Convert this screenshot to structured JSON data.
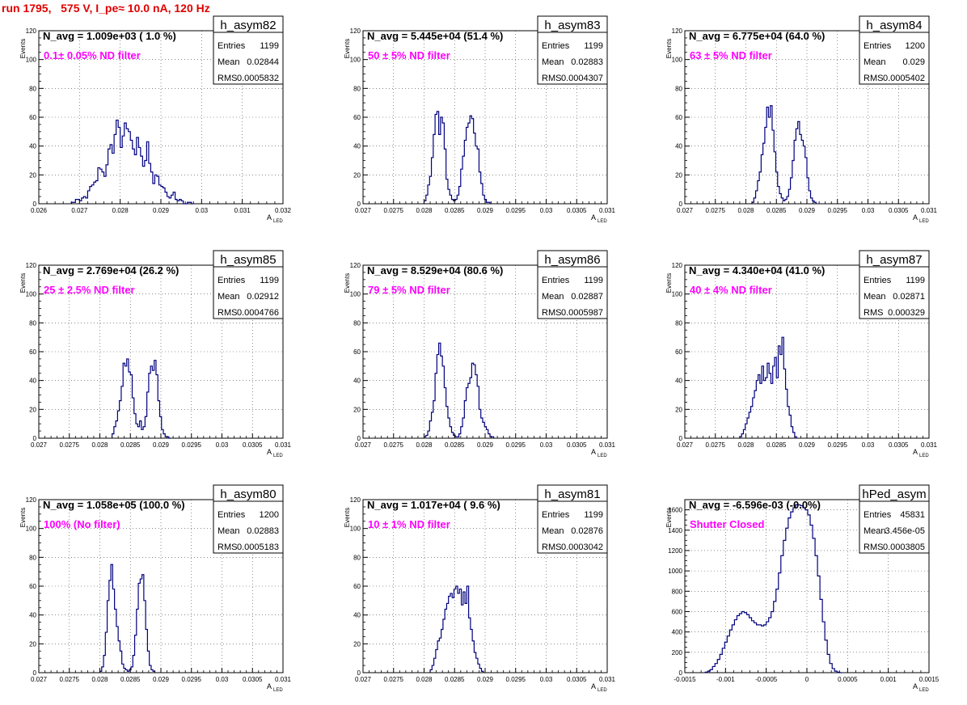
{
  "header": {
    "title": "run 1795,   575 V, I_pe≈ 10.0 nA, 120 Hz"
  },
  "stats_labels": {
    "entries": "Entries",
    "mean": "Mean",
    "rms": "RMS"
  },
  "axis_labels": {
    "ylabel": "Events",
    "xlabel_main": "A",
    "xlabel_sub": "LED"
  },
  "colors": {
    "histogram": "#00007f",
    "label": "#ff00ff",
    "title": "#e00000"
  },
  "chart_data": [
    {
      "type": "histogram",
      "name": "h_asym82",
      "navg_text": "N_avg = 1.009e+03 ( 1.0 %)",
      "label": "0.1± 0.05% ND filter",
      "stats": {
        "entries": "1199",
        "mean": "0.02844",
        "rms": "0.0005832"
      },
      "xlim": [
        0.026,
        0.032
      ],
      "ylim": [
        0,
        120
      ],
      "xticks": [
        "0.026",
        "0.027",
        "0.028",
        "0.029",
        "0.03",
        "0.031",
        "0.032"
      ],
      "yticks": [
        "0",
        "20",
        "40",
        "60",
        "80",
        "100",
        "120"
      ],
      "bin_start": 0.0268,
      "bin_width": 5e-05,
      "counts": [
        1,
        1,
        3,
        3,
        2,
        4,
        5,
        4,
        9,
        12,
        13,
        15,
        16,
        25,
        24,
        22,
        19,
        27,
        38,
        41,
        35,
        48,
        58,
        53,
        39,
        47,
        56,
        52,
        50,
        44,
        38,
        34,
        46,
        39,
        33,
        26,
        30,
        43,
        28,
        22,
        14,
        20,
        19,
        13,
        12,
        11,
        8,
        5,
        4,
        6,
        8,
        3,
        2,
        3,
        2,
        0,
        0,
        1,
        1,
        0
      ]
    },
    {
      "type": "histogram",
      "name": "h_asym83",
      "navg_text": "N_avg = 5.445e+04 (51.4 %)",
      "label": "50 ± 5% ND filter",
      "stats": {
        "entries": "1199",
        "mean": "0.02883",
        "rms": "0.0004307"
      },
      "xlim": [
        0.027,
        0.031
      ],
      "ylim": [
        0,
        120
      ],
      "xticks": [
        "0.027",
        "0.0275",
        "0.028",
        "0.0285",
        "0.029",
        "0.0295",
        "0.03",
        "0.0305",
        "0.031"
      ],
      "yticks": [
        "0",
        "20",
        "40",
        "60",
        "80",
        "100",
        "120"
      ],
      "bin_start": 0.028,
      "bin_width": 3e-05,
      "counts": [
        2,
        6,
        13,
        19,
        32,
        48,
        62,
        64,
        48,
        60,
        56,
        38,
        17,
        10,
        6,
        3,
        2,
        3,
        6,
        12,
        24,
        33,
        44,
        53,
        56,
        61,
        59,
        49,
        40,
        38,
        22,
        14,
        6,
        3,
        1,
        1
      ]
    },
    {
      "type": "histogram",
      "name": "h_asym84",
      "navg_text": "N_avg = 6.775e+04 (64.0 %)",
      "label": "63 ± 5% ND filter",
      "stats": {
        "entries": "1200",
        "mean": "0.029",
        "rms": "0.0005402"
      },
      "xlim": [
        0.027,
        0.031
      ],
      "ylim": [
        0,
        120
      ],
      "xticks": [
        "0.027",
        "0.0275",
        "0.028",
        "0.0285",
        "0.029",
        "0.0295",
        "0.03",
        "0.0305",
        "0.031"
      ],
      "yticks": [
        "0",
        "20",
        "40",
        "60",
        "80",
        "100",
        "120"
      ],
      "bin_start": 0.0281,
      "bin_width": 3e-05,
      "counts": [
        1,
        4,
        9,
        16,
        22,
        34,
        42,
        53,
        67,
        60,
        68,
        51,
        36,
        22,
        12,
        7,
        4,
        2,
        3,
        5,
        10,
        18,
        30,
        44,
        52,
        57,
        48,
        44,
        40,
        32,
        18,
        9,
        4,
        2,
        1
      ]
    },
    {
      "type": "histogram",
      "name": "h_asym85",
      "navg_text": "N_avg = 2.769e+04 (26.2 %)",
      "label": "25 ± 2.5% ND filter",
      "stats": {
        "entries": "1199",
        "mean": "0.02912",
        "rms": "0.0004766"
      },
      "xlim": [
        0.027,
        0.031
      ],
      "ylim": [
        0,
        120
      ],
      "xticks": [
        "0.027",
        "0.0275",
        "0.028",
        "0.0285",
        "0.029",
        "0.0295",
        "0.03",
        "0.0305",
        "0.031"
      ],
      "yticks": [
        "0",
        "20",
        "40",
        "60",
        "80",
        "100",
        "120"
      ],
      "bin_start": 0.0282,
      "bin_width": 3e-05,
      "counts": [
        3,
        8,
        12,
        19,
        26,
        36,
        52,
        50,
        55,
        46,
        44,
        28,
        17,
        10,
        8,
        12,
        6,
        8,
        15,
        32,
        45,
        50,
        47,
        54,
        44,
        26,
        15,
        6,
        3,
        1,
        1,
        0
      ]
    },
    {
      "type": "histogram",
      "name": "h_asym86",
      "navg_text": "N_avg = 8.529e+04 (80.6 %)",
      "label": "79 ± 5% ND filter",
      "stats": {
        "entries": "1199",
        "mean": "0.02887",
        "rms": "0.0005987"
      },
      "xlim": [
        0.027,
        0.031
      ],
      "ylim": [
        0,
        120
      ],
      "xticks": [
        "0.027",
        "0.0275",
        "0.028",
        "0.0285",
        "0.029",
        "0.0295",
        "0.03",
        "0.0305",
        "0.031"
      ],
      "yticks": [
        "0",
        "20",
        "40",
        "60",
        "80",
        "100",
        "120"
      ],
      "bin_start": 0.028,
      "bin_width": 3e-05,
      "counts": [
        1,
        2,
        5,
        12,
        18,
        26,
        45,
        58,
        66,
        57,
        50,
        35,
        22,
        14,
        8,
        4,
        2,
        1,
        1,
        3,
        8,
        14,
        26,
        35,
        38,
        42,
        52,
        51,
        44,
        36,
        20,
        14,
        11,
        8,
        6,
        3,
        1,
        1
      ]
    },
    {
      "type": "histogram",
      "name": "h_asym87",
      "navg_text": "N_avg = 4.340e+04 (41.0 %)",
      "label": "40 ± 4% ND filter",
      "stats": {
        "entries": "1199",
        "mean": "0.02871",
        "rms": "0.000329"
      },
      "xlim": [
        0.027,
        0.031
      ],
      "ylim": [
        0,
        120
      ],
      "xticks": [
        "0.027",
        "0.0275",
        "0.028",
        "0.0285",
        "0.029",
        "0.0295",
        "0.03",
        "0.0305",
        "0.031"
      ],
      "yticks": [
        "0",
        "20",
        "40",
        "60",
        "80",
        "100",
        "120"
      ],
      "bin_start": 0.0279,
      "bin_width": 3e-05,
      "counts": [
        1,
        3,
        6,
        10,
        14,
        18,
        22,
        28,
        33,
        40,
        44,
        38,
        50,
        40,
        42,
        52,
        45,
        38,
        50,
        56,
        42,
        64,
        58,
        70,
        48,
        34,
        22,
        16,
        8,
        4,
        1
      ]
    },
    {
      "type": "histogram",
      "name": "h_asym80",
      "navg_text": "N_avg = 1.058e+05 (100.0 %)",
      "label": "100% (No filter)",
      "stats": {
        "entries": "1200",
        "mean": "0.02883",
        "rms": "0.0005183"
      },
      "xlim": [
        0.027,
        0.031
      ],
      "ylim": [
        0,
        120
      ],
      "xticks": [
        "0.027",
        "0.0275",
        "0.028",
        "0.0285",
        "0.029",
        "0.0295",
        "0.03",
        "0.0305",
        "0.031"
      ],
      "yticks": [
        "0",
        "20",
        "40",
        "60",
        "80",
        "100",
        "120"
      ],
      "bin_start": 0.028,
      "bin_width": 3e-05,
      "counts": [
        1,
        4,
        12,
        28,
        50,
        64,
        75,
        58,
        44,
        32,
        22,
        15,
        6,
        3,
        2,
        1,
        2,
        4,
        12,
        26,
        44,
        62,
        65,
        68,
        50,
        30,
        15,
        5,
        2,
        1
      ]
    },
    {
      "type": "histogram",
      "name": "h_asym81",
      "navg_text": "N_avg = 1.017e+04 ( 9.6 %)",
      "label": "10 ± 1% ND filter",
      "stats": {
        "entries": "1199",
        "mean": "0.02876",
        "rms": "0.0003042"
      },
      "xlim": [
        0.027,
        0.031
      ],
      "ylim": [
        0,
        120
      ],
      "xticks": [
        "0.027",
        "0.0275",
        "0.028",
        "0.0285",
        "0.029",
        "0.0295",
        "0.03",
        "0.0305",
        "0.031"
      ],
      "yticks": [
        "0",
        "20",
        "40",
        "60",
        "80",
        "100",
        "120"
      ],
      "bin_start": 0.0281,
      "bin_width": 3e-05,
      "counts": [
        2,
        5,
        10,
        16,
        22,
        24,
        30,
        37,
        44,
        48,
        53,
        55,
        52,
        58,
        60,
        55,
        58,
        47,
        56,
        48,
        60,
        38,
        30,
        22,
        14,
        10,
        6,
        3,
        1
      ]
    },
    {
      "type": "histogram",
      "name": "hPed_asym",
      "navg_text": "N_avg = -6.596e-03 (-0.0%)",
      "label": "Shutter Closed",
      "stats": {
        "entries": "45831",
        "mean": "3.456e-05",
        "rms": "0.0003805"
      },
      "xlim": [
        -0.0015,
        0.0015
      ],
      "ylim": [
        0,
        1700
      ],
      "xticks": [
        "-0.0015",
        "-0.001",
        "-0.0005",
        "0",
        "0.0005",
        "0.001",
        "0.0015"
      ],
      "yticks": [
        "0",
        "200",
        "400",
        "600",
        "800",
        "1000",
        "1200",
        "1400",
        "1600"
      ],
      "bin_start": -0.00125,
      "bin_width": 3e-05,
      "counts": [
        5,
        15,
        30,
        60,
        90,
        130,
        180,
        240,
        300,
        360,
        420,
        470,
        520,
        560,
        580,
        600,
        590,
        570,
        540,
        510,
        490,
        470,
        470,
        460,
        470,
        500,
        540,
        600,
        700,
        820,
        980,
        1150,
        1300,
        1420,
        1520,
        1580,
        1620,
        1650,
        1650,
        1640,
        1620,
        1600,
        1550,
        1450,
        1320,
        1150,
        950,
        720,
        500,
        320,
        180,
        90,
        40,
        15,
        5,
        0
      ]
    }
  ]
}
